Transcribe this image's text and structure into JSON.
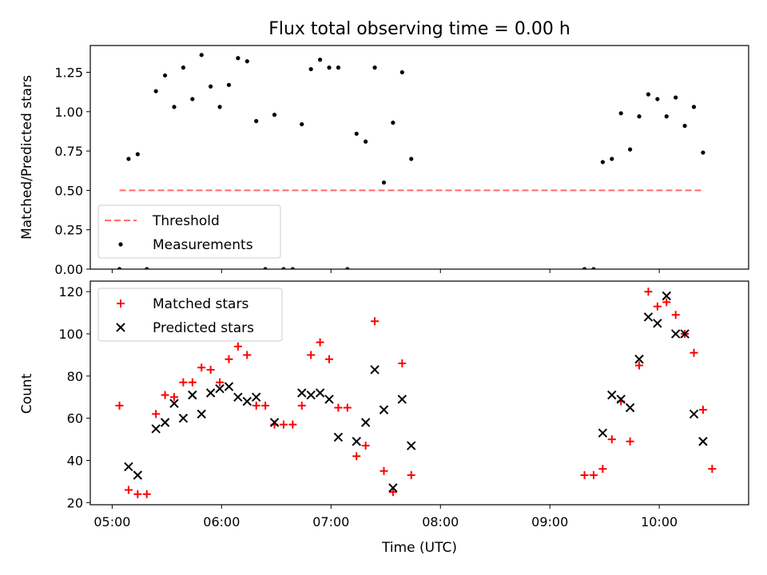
{
  "figure": {
    "title": "Flux total observing time = 0.00 h",
    "xlabel": "Time (UTC)"
  },
  "colors": {
    "threshold": "#ff6b6b",
    "measurements": "#000000",
    "matched": "#ff0000",
    "predicted": "#000000"
  },
  "chart_data": [
    {
      "type": "scatter",
      "panel": "top",
      "ylabel": "Matched/Predicted stars",
      "xlim": [
        "04:48",
        "10:49"
      ],
      "ylim": [
        0,
        1.42
      ],
      "yticks": [
        "0.00",
        "0.25",
        "0.50",
        "0.75",
        "1.00",
        "1.25"
      ],
      "legend_position": "lower-left",
      "series": [
        {
          "name": "Threshold",
          "kind": "dashed-line",
          "points": [
            [
              "05:04",
              0.5
            ],
            [
              "10:24",
              0.5
            ]
          ]
        },
        {
          "name": "Measurements",
          "kind": "dot",
          "points": [
            [
              "05:04",
              0.0
            ],
            [
              "05:09",
              0.7
            ],
            [
              "05:14",
              0.73
            ],
            [
              "05:19",
              0.0
            ],
            [
              "05:24",
              1.13
            ],
            [
              "05:29",
              1.23
            ],
            [
              "05:34",
              1.03
            ],
            [
              "05:39",
              1.28
            ],
            [
              "05:44",
              1.08
            ],
            [
              "05:49",
              1.36
            ],
            [
              "05:54",
              1.16
            ],
            [
              "05:59",
              1.03
            ],
            [
              "06:04",
              1.17
            ],
            [
              "06:09",
              1.34
            ],
            [
              "06:14",
              1.32
            ],
            [
              "06:19",
              0.94
            ],
            [
              "06:24",
              0.0
            ],
            [
              "06:29",
              0.98
            ],
            [
              "06:34",
              0.0
            ],
            [
              "06:39",
              0.0
            ],
            [
              "06:44",
              0.92
            ],
            [
              "06:49",
              1.27
            ],
            [
              "06:54",
              1.33
            ],
            [
              "06:59",
              1.28
            ],
            [
              "07:04",
              1.28
            ],
            [
              "07:09",
              0.0
            ],
            [
              "07:14",
              0.86
            ],
            [
              "07:19",
              0.81
            ],
            [
              "07:24",
              1.28
            ],
            [
              "07:29",
              0.55
            ],
            [
              "07:34",
              0.93
            ],
            [
              "07:39",
              1.25
            ],
            [
              "07:44",
              0.7
            ],
            [
              "09:19",
              0.0
            ],
            [
              "09:24",
              0.0
            ],
            [
              "09:29",
              0.68
            ],
            [
              "09:34",
              0.7
            ],
            [
              "09:39",
              0.99
            ],
            [
              "09:44",
              0.76
            ],
            [
              "09:49",
              0.97
            ],
            [
              "09:54",
              1.11
            ],
            [
              "09:59",
              1.08
            ],
            [
              "10:04",
              0.97
            ],
            [
              "10:09",
              1.09
            ],
            [
              "10:14",
              0.91
            ],
            [
              "10:19",
              1.03
            ],
            [
              "10:24",
              0.74
            ]
          ]
        }
      ]
    },
    {
      "type": "scatter",
      "panel": "bottom",
      "ylabel": "Count",
      "xlim": [
        "04:48",
        "10:49"
      ],
      "ylim": [
        19,
        125
      ],
      "yticks": [
        "20",
        "40",
        "60",
        "80",
        "100",
        "120"
      ],
      "xticks": [
        "05:00",
        "06:00",
        "07:00",
        "08:00",
        "09:00",
        "10:00"
      ],
      "legend_position": "upper-left",
      "series": [
        {
          "name": "Matched stars",
          "kind": "plus",
          "points": [
            [
              "05:04",
              66
            ],
            [
              "05:09",
              26
            ],
            [
              "05:14",
              24
            ],
            [
              "05:19",
              24
            ],
            [
              "05:24",
              62
            ],
            [
              "05:29",
              71
            ],
            [
              "05:34",
              70
            ],
            [
              "05:39",
              77
            ],
            [
              "05:44",
              77
            ],
            [
              "05:49",
              84
            ],
            [
              "05:54",
              83
            ],
            [
              "05:59",
              77
            ],
            [
              "06:04",
              88
            ],
            [
              "06:09",
              94
            ],
            [
              "06:14",
              90
            ],
            [
              "06:19",
              66
            ],
            [
              "06:24",
              66
            ],
            [
              "06:29",
              57
            ],
            [
              "06:34",
              57
            ],
            [
              "06:39",
              57
            ],
            [
              "06:44",
              66
            ],
            [
              "06:49",
              90
            ],
            [
              "06:54",
              96
            ],
            [
              "06:59",
              88
            ],
            [
              "07:04",
              65
            ],
            [
              "07:09",
              65
            ],
            [
              "07:14",
              42
            ],
            [
              "07:19",
              47
            ],
            [
              "07:24",
              106
            ],
            [
              "07:29",
              35
            ],
            [
              "07:34",
              25
            ],
            [
              "07:39",
              86
            ],
            [
              "07:44",
              33
            ],
            [
              "09:19",
              33
            ],
            [
              "09:24",
              33
            ],
            [
              "09:29",
              36
            ],
            [
              "09:34",
              50
            ],
            [
              "09:39",
              68
            ],
            [
              "09:44",
              49
            ],
            [
              "09:49",
              85
            ],
            [
              "09:54",
              120
            ],
            [
              "09:59",
              113
            ],
            [
              "10:04",
              115
            ],
            [
              "10:09",
              109
            ],
            [
              "10:14",
              100
            ],
            [
              "10:19",
              91
            ],
            [
              "10:24",
              64
            ],
            [
              "10:29",
              36
            ]
          ]
        },
        {
          "name": "Predicted stars",
          "kind": "x",
          "points": [
            [
              "05:09",
              37
            ],
            [
              "05:14",
              33
            ],
            [
              "05:24",
              55
            ],
            [
              "05:29",
              58
            ],
            [
              "05:34",
              67
            ],
            [
              "05:39",
              60
            ],
            [
              "05:44",
              71
            ],
            [
              "05:49",
              62
            ],
            [
              "05:54",
              72
            ],
            [
              "05:59",
              74
            ],
            [
              "06:04",
              75
            ],
            [
              "06:09",
              70
            ],
            [
              "06:14",
              68
            ],
            [
              "06:19",
              70
            ],
            [
              "06:29",
              58
            ],
            [
              "06:44",
              72
            ],
            [
              "06:49",
              71
            ],
            [
              "06:54",
              72
            ],
            [
              "06:59",
              69
            ],
            [
              "07:04",
              51
            ],
            [
              "07:14",
              49
            ],
            [
              "07:19",
              58
            ],
            [
              "07:24",
              83
            ],
            [
              "07:29",
              64
            ],
            [
              "07:34",
              27
            ],
            [
              "07:39",
              69
            ],
            [
              "07:44",
              47
            ],
            [
              "09:29",
              53
            ],
            [
              "09:34",
              71
            ],
            [
              "09:39",
              69
            ],
            [
              "09:44",
              65
            ],
            [
              "09:49",
              88
            ],
            [
              "09:54",
              108
            ],
            [
              "09:59",
              105
            ],
            [
              "10:04",
              118
            ],
            [
              "10:09",
              100
            ],
            [
              "10:14",
              100
            ],
            [
              "10:19",
              62
            ],
            [
              "10:24",
              49
            ]
          ]
        }
      ]
    }
  ]
}
